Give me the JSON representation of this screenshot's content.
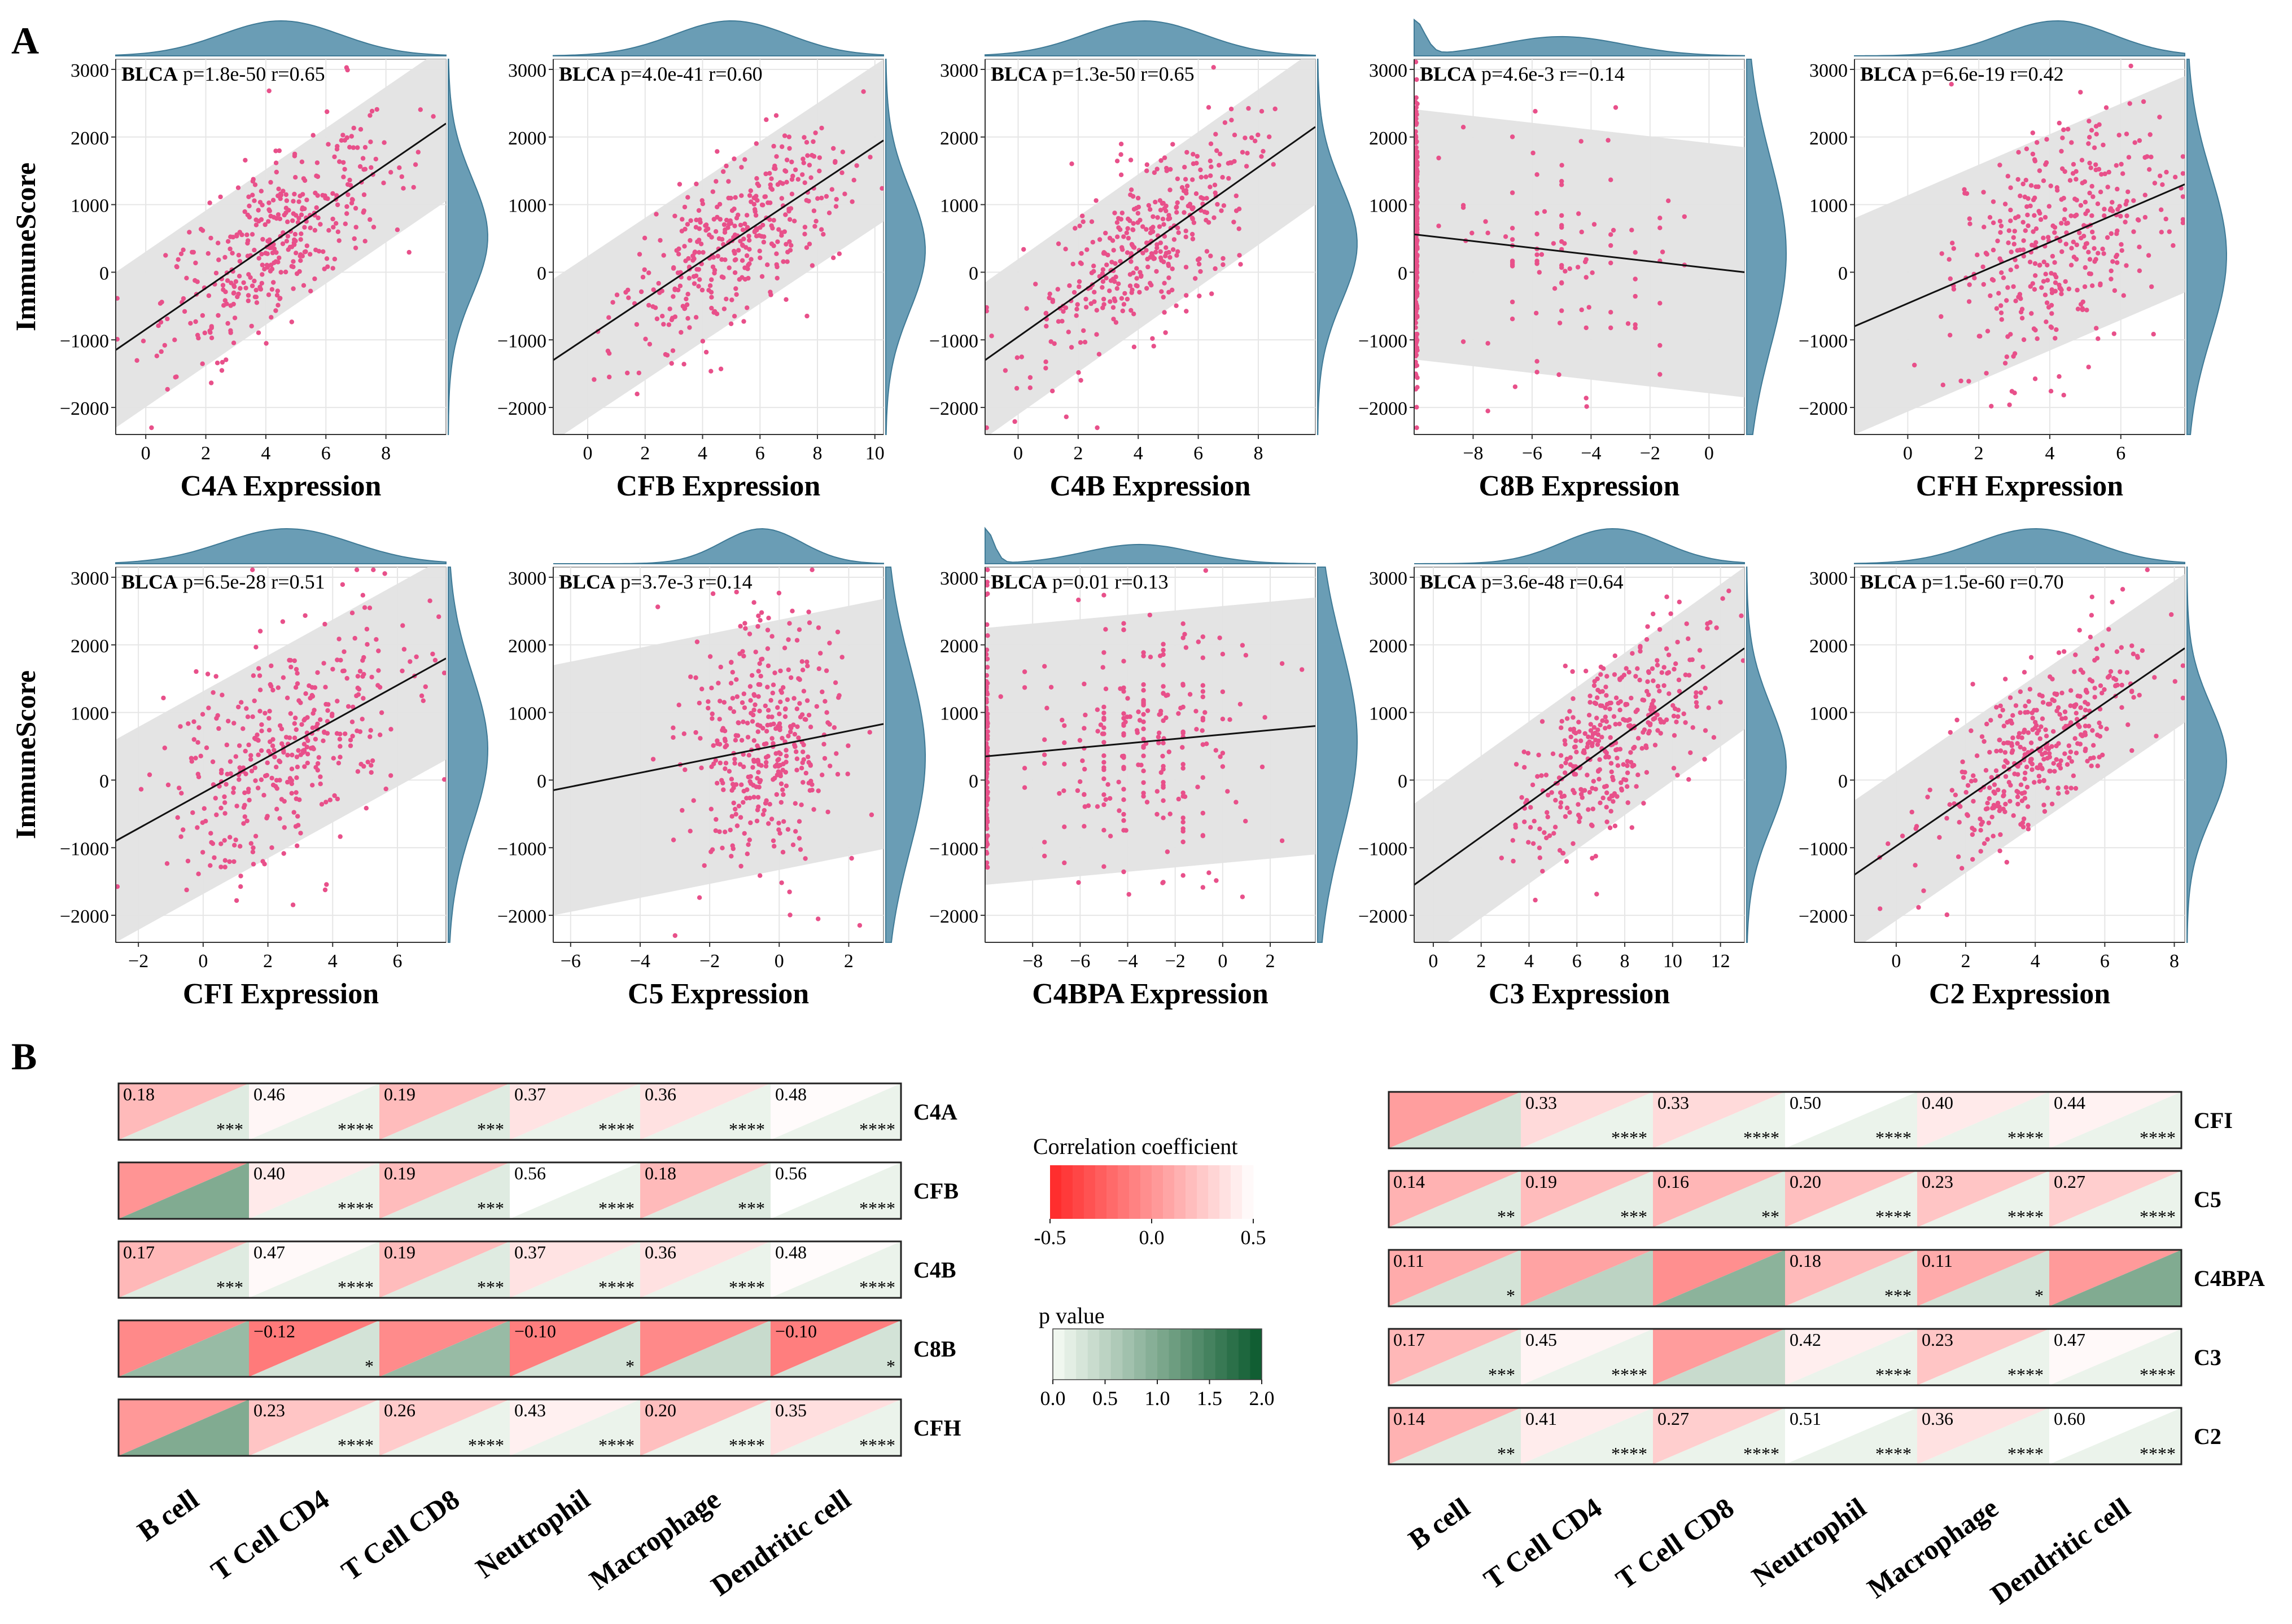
{
  "figure": {
    "panel_a_label": "A",
    "panel_b_label": "B"
  },
  "colors": {
    "point": "#e8508a",
    "band": "#e3e3e3",
    "density": "#6a9db5",
    "density_edge": "#3f7a96",
    "axis": "#333333",
    "grid": "#e6e6e6",
    "neg_corr": "#ff2a2a",
    "pos_corr": "#ffffff",
    "p_high": "#0a5a2a"
  },
  "chart_data": {
    "type": "scatter",
    "cancer": "BLCA",
    "ylabel": "ImmuneScore",
    "ylim": [
      -2400,
      3150
    ],
    "yticks": [
      -2000,
      -1000,
      0,
      1000,
      2000,
      3000
    ],
    "ytick_labels": [
      "−2000",
      "−1000",
      "0",
      "1000",
      "2000",
      "3000"
    ],
    "panels": [
      {
        "gene": "C4A",
        "xlabel": "C4A Expression",
        "p": "1.8e-50",
        "r": "0.65",
        "r_value": 0.65,
        "xlim": [
          -1,
          10
        ],
        "xticks": [
          0,
          2,
          4,
          6,
          8
        ],
        "xtick_labels": [
          "0",
          "2",
          "4",
          "6",
          "8"
        ],
        "x_mean": 4.5,
        "x_sd": 1.9,
        "line": [
          -1150.0,
          2200.0
        ],
        "band_half": 1150,
        "points": 380,
        "zero_mass": 0
      },
      {
        "gene": "CFB",
        "xlabel": "CFB Expression",
        "p": "4.0e-41",
        "r": "0.60",
        "r_value": 0.6,
        "xlim": [
          -1.2,
          10.3
        ],
        "xticks": [
          0,
          2,
          4,
          6,
          8,
          10
        ],
        "xtick_labels": [
          "0",
          "2",
          "4",
          "6",
          "8",
          "10"
        ],
        "x_mean": 5.0,
        "x_sd": 1.9,
        "line": [
          -1300.0,
          1950.0
        ],
        "band_half": 1200,
        "points": 380,
        "zero_mass": 0
      },
      {
        "gene": "C4B",
        "xlabel": "C4B Expression",
        "p": "1.3e-50",
        "r": "0.65",
        "r_value": 0.65,
        "xlim": [
          -1.1,
          9.9
        ],
        "xticks": [
          0,
          2,
          4,
          6,
          8
        ],
        "xtick_labels": [
          "0",
          "2",
          "4",
          "6",
          "8"
        ],
        "x_mean": 4.2,
        "x_sd": 1.9,
        "line": [
          -1300.0,
          2150.0
        ],
        "band_half": 1150,
        "points": 380,
        "zero_mass": 0
      },
      {
        "gene": "C8B",
        "xlabel": "C8B Expression",
        "p": "4.6e-3",
        "r": "−0.14",
        "r_value": -0.14,
        "xlim": [
          -10,
          1.2
        ],
        "xticks": [
          -8,
          -6,
          -4,
          -2,
          0
        ],
        "xtick_labels": [
          "−8",
          "−6",
          "−4",
          "−2",
          "0"
        ],
        "x_mean": -5,
        "x_sd": 2,
        "line": [
          560,
          0
        ],
        "band_half": 1850,
        "points": 380,
        "zero_mass": 0.72
      },
      {
        "gene": "CFH",
        "xlabel": "CFH Expression",
        "p": "6.6e-19",
        "r": "0.42",
        "r_value": 0.42,
        "xlim": [
          -1.5,
          7.8
        ],
        "xticks": [
          0,
          2,
          4,
          6
        ],
        "xtick_labels": [
          "0",
          "2",
          "4",
          "6"
        ],
        "x_mean": 4.2,
        "x_sd": 1.5,
        "line": [
          -800,
          1300
        ],
        "band_half": 1600,
        "points": 380,
        "zero_mass": 0
      },
      {
        "gene": "CFI",
        "xlabel": "CFI Expression",
        "p": "6.5e-28",
        "r": "0.51",
        "r_value": 0.51,
        "xlim": [
          -2.7,
          7.5
        ],
        "xticks": [
          -2,
          0,
          2,
          4,
          6
        ],
        "xtick_labels": [
          "−2",
          "0",
          "2",
          "4",
          "6"
        ],
        "x_mean": 2.6,
        "x_sd": 1.9,
        "line": [
          -900,
          1800
        ],
        "band_half": 1500,
        "points": 380,
        "zero_mass": 0
      },
      {
        "gene": "C5",
        "xlabel": "C5 Expression",
        "p": "3.7e-3",
        "r": "0.14",
        "r_value": 0.14,
        "xlim": [
          -6.5,
          3
        ],
        "xticks": [
          -6,
          -4,
          -2,
          0,
          2
        ],
        "xtick_labels": [
          "−6",
          "−4",
          "−2",
          "0",
          "2"
        ],
        "x_mean": -0.5,
        "x_sd": 1.1,
        "line": [
          -150,
          830
        ],
        "band_half": 1850,
        "points": 380,
        "zero_mass": 0
      },
      {
        "gene": "C4BPA",
        "xlabel": "C4BPA Expression",
        "p": "0.01",
        "r": "0.13",
        "r_value": 0.13,
        "xlim": [
          -10,
          3.9
        ],
        "xticks": [
          -8,
          -6,
          -4,
          -2,
          0,
          2
        ],
        "xtick_labels": [
          "−8",
          "−6",
          "−4",
          "−2",
          "0",
          "2"
        ],
        "x_mean": -3.5,
        "x_sd": 2.2,
        "line": [
          350,
          800
        ],
        "band_half": 1900,
        "points": 380,
        "zero_mass": 0.35
      },
      {
        "gene": "C3",
        "xlabel": "C3 Expression",
        "p": "3.6e-48",
        "r": "0.64",
        "r_value": 0.64,
        "xlim": [
          -0.8,
          13
        ],
        "xticks": [
          0,
          2,
          4,
          6,
          8,
          10,
          12
        ],
        "xtick_labels": [
          "0",
          "2",
          "4",
          "6",
          "8",
          "10",
          "12"
        ],
        "x_mean": 7.5,
        "x_sd": 2.0,
        "line": [
          -1550.0,
          1950.0
        ],
        "band_half": 1200,
        "points": 380,
        "zero_mass": 0
      },
      {
        "gene": "C2",
        "xlabel": "C2 Expression",
        "p": "1.5e-60",
        "r": "0.70",
        "r_value": 0.7,
        "xlim": [
          -1.2,
          8.3
        ],
        "xticks": [
          0,
          2,
          4,
          6,
          8
        ],
        "xtick_labels": [
          "0",
          "2",
          "4",
          "6",
          "8"
        ],
        "x_mean": 4.0,
        "x_sd": 1.6,
        "line": [
          -1400.0,
          1950.0
        ],
        "band_half": 1100,
        "points": 380,
        "zero_mass": 0
      }
    ],
    "heatmap": {
      "type": "heatmap",
      "columns": [
        "B cell",
        "T Cell CD4",
        "T Cell CD8",
        "Neutrophil",
        "Macrophage",
        "Dendritic cell"
      ],
      "left_rows": [
        {
          "gene": "C4A",
          "values": [
            "0.18",
            "0.46",
            "0.19",
            "0.37",
            "0.36",
            "0.48"
          ],
          "pstars": [
            "***",
            "****",
            "***",
            "****",
            "****",
            "****"
          ],
          "corr": [
            0.18,
            0.46,
            0.19,
            0.37,
            0.36,
            0.48
          ],
          "pval": [
            0.2,
            0.1,
            0.2,
            0.1,
            0.1,
            0.1
          ]
        },
        {
          "gene": "CFB",
          "values": [
            "",
            "0.40",
            "0.19",
            "0.56",
            "0.18",
            "0.56"
          ],
          "pstars": [
            "",
            "****",
            "***",
            "****",
            "***",
            "****"
          ],
          "corr": [
            0.0,
            0.4,
            0.19,
            0.56,
            0.18,
            0.56
          ],
          "pval": [
            1.0,
            0.1,
            0.2,
            0.1,
            0.2,
            0.1
          ]
        },
        {
          "gene": "C4B",
          "values": [
            "0.17",
            "0.47",
            "0.19",
            "0.37",
            "0.36",
            "0.48"
          ],
          "pstars": [
            "***",
            "****",
            "***",
            "****",
            "****",
            "****"
          ],
          "corr": [
            0.17,
            0.47,
            0.19,
            0.37,
            0.36,
            0.48
          ],
          "pval": [
            0.2,
            0.1,
            0.2,
            0.1,
            0.1,
            0.1
          ]
        },
        {
          "gene": "C8B",
          "values": [
            "",
            "−0.12",
            "",
            "−0.10",
            "",
            "−0.10"
          ],
          "pstars": [
            "",
            "*",
            "",
            "*",
            "",
            "*"
          ],
          "corr": [
            -0.05,
            -0.12,
            -0.04,
            -0.1,
            -0.05,
            -0.1
          ],
          "pval": [
            0.8,
            0.3,
            0.8,
            0.3,
            0.4,
            0.3
          ]
        },
        {
          "gene": "CFH",
          "values": [
            "",
            "0.23",
            "0.26",
            "0.43",
            "0.20",
            "0.35"
          ],
          "pstars": [
            "",
            "****",
            "****",
            "****",
            "****",
            "****"
          ],
          "corr": [
            0.02,
            0.23,
            0.26,
            0.43,
            0.2,
            0.35
          ],
          "pval": [
            1.0,
            0.1,
            0.1,
            0.1,
            0.1,
            0.1
          ]
        }
      ],
      "right_rows": [
        {
          "gene": "CFI",
          "values": [
            "",
            "0.33",
            "0.33",
            "0.50",
            "0.40",
            "0.44"
          ],
          "pstars": [
            "",
            "****",
            "****",
            "****",
            "****",
            "****"
          ],
          "corr": [
            0.05,
            0.33,
            0.33,
            0.5,
            0.4,
            0.44
          ],
          "pval": [
            0.3,
            0.1,
            0.1,
            0.1,
            0.1,
            0.1
          ]
        },
        {
          "gene": "C5",
          "values": [
            "0.14",
            "0.19",
            "0.16",
            "0.20",
            "0.23",
            "0.27"
          ],
          "pstars": [
            "**",
            "***",
            "**",
            "****",
            "****",
            "****"
          ],
          "corr": [
            0.14,
            0.19,
            0.16,
            0.2,
            0.23,
            0.27
          ],
          "pval": [
            0.2,
            0.15,
            0.2,
            0.1,
            0.1,
            0.1
          ]
        },
        {
          "gene": "C4BPA",
          "values": [
            "0.11",
            "",
            "",
            "0.18",
            "0.11",
            ""
          ],
          "pstars": [
            "*",
            "",
            "",
            "***",
            "*",
            ""
          ],
          "corr": [
            0.11,
            0.07,
            -0.02,
            0.18,
            0.11,
            0.03
          ],
          "pval": [
            0.3,
            0.5,
            0.9,
            0.2,
            0.3,
            1.0
          ]
        },
        {
          "gene": "C3",
          "values": [
            "0.17",
            "0.45",
            "",
            "0.42",
            "0.23",
            "0.47"
          ],
          "pstars": [
            "***",
            "****",
            "",
            "****",
            "****",
            "****"
          ],
          "corr": [
            0.17,
            0.45,
            0.04,
            0.42,
            0.23,
            0.47
          ],
          "pval": [
            0.2,
            0.1,
            0.4,
            0.1,
            0.1,
            0.1
          ]
        },
        {
          "gene": "C2",
          "values": [
            "0.14",
            "0.41",
            "0.27",
            "0.51",
            "0.36",
            "0.60"
          ],
          "pstars": [
            "**",
            "****",
            "****",
            "****",
            "****",
            "****"
          ],
          "corr": [
            0.14,
            0.41,
            0.27,
            0.51,
            0.36,
            0.6
          ],
          "pval": [
            0.2,
            0.1,
            0.1,
            0.1,
            0.1,
            0.1
          ]
        }
      ],
      "legend_corr": {
        "title": "Correlation coefficient",
        "ticks": [
          "-0.5",
          "0.0",
          "0.5"
        ],
        "range": [
          -0.5,
          0.5
        ]
      },
      "legend_p": {
        "title": "p value",
        "ticks": [
          "0.0",
          "0.5",
          "1.0",
          "1.5",
          "2.0"
        ],
        "range": [
          0,
          2
        ]
      }
    }
  }
}
